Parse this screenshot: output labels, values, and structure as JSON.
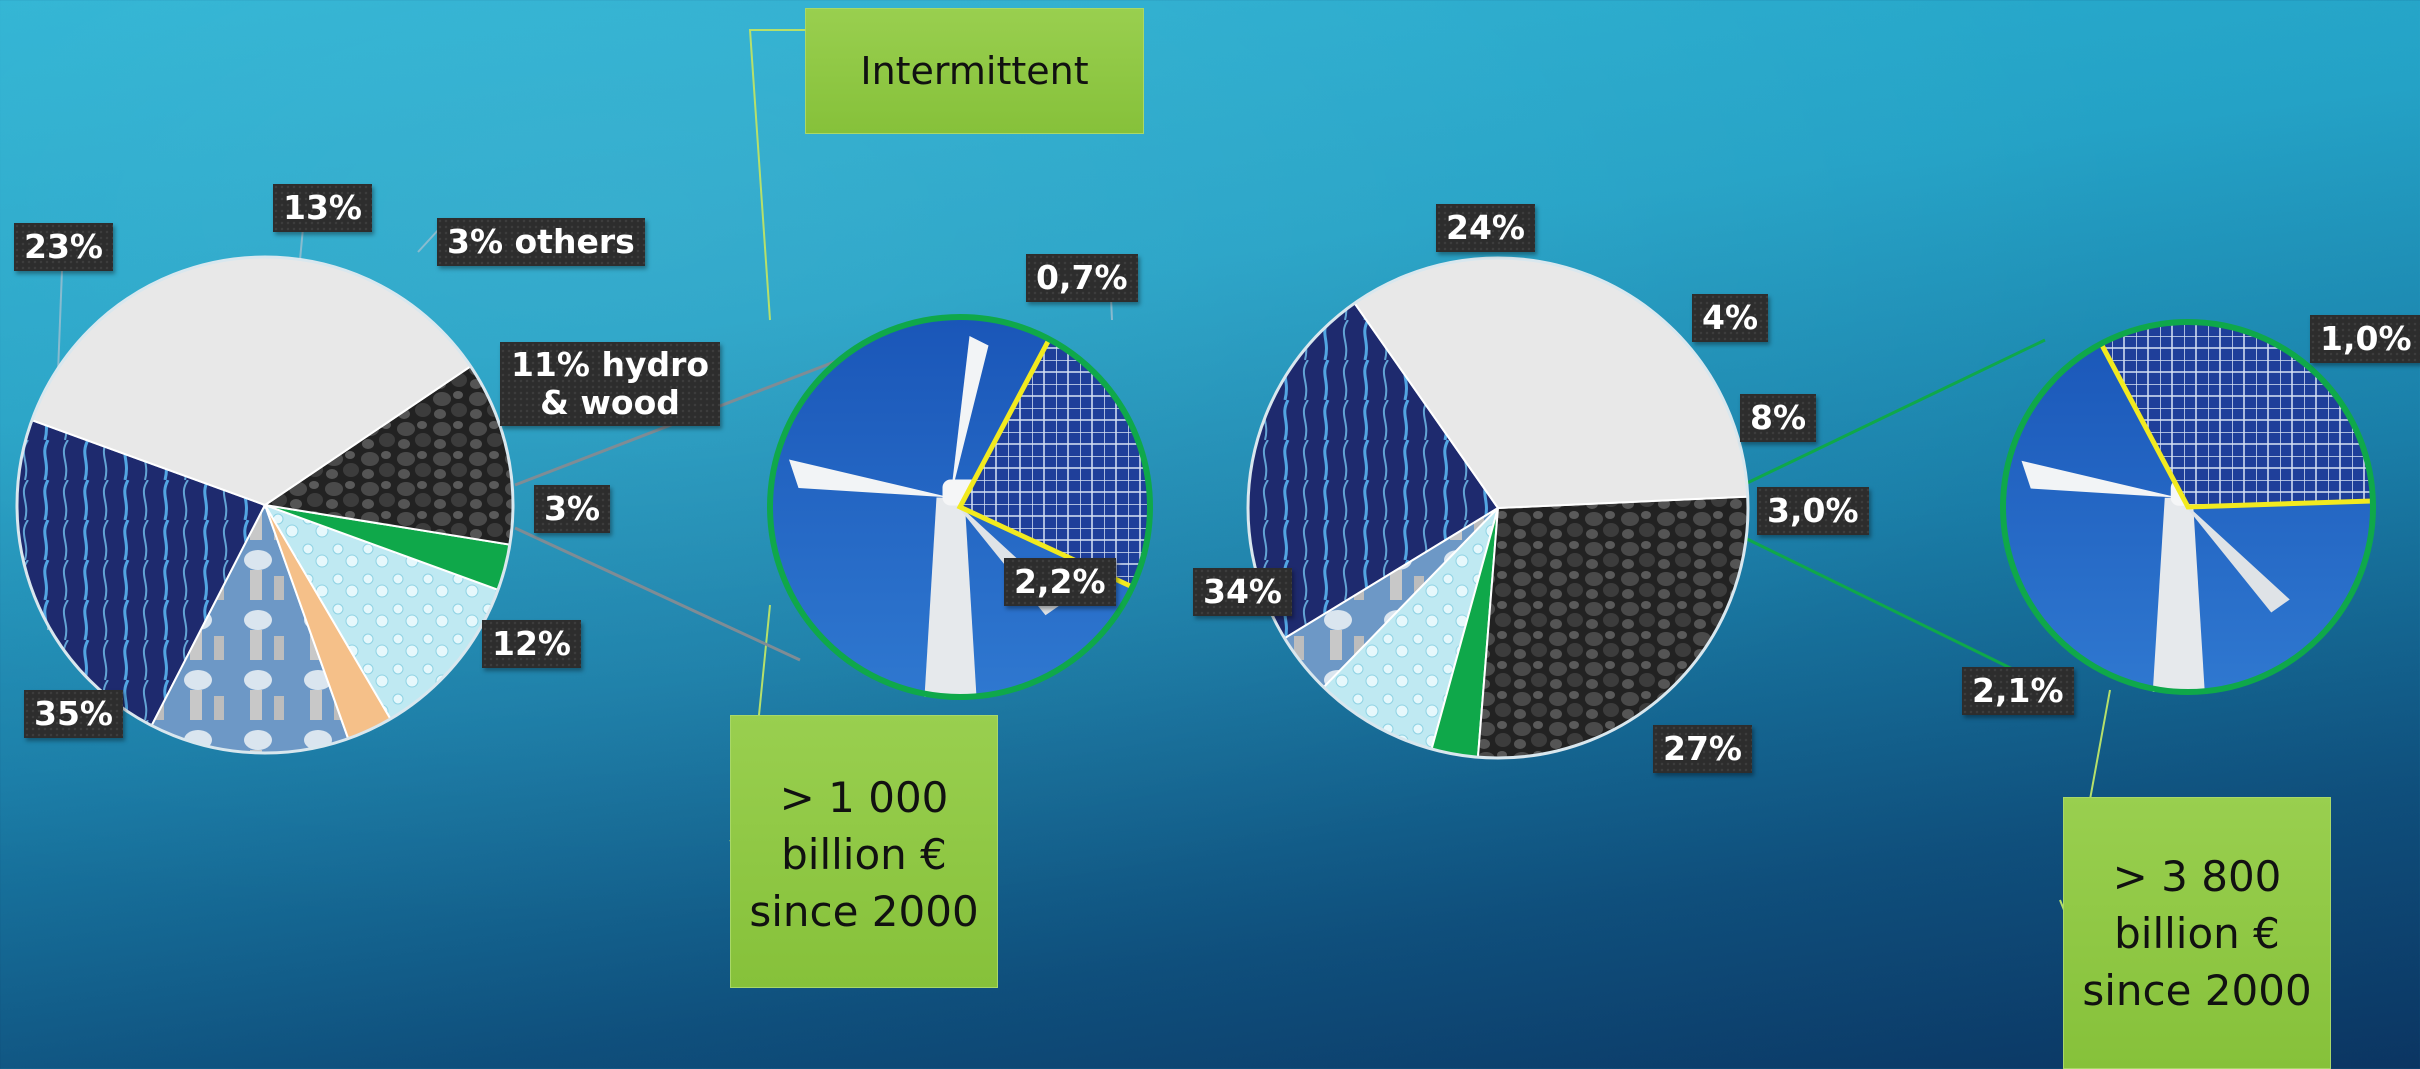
{
  "colors": {
    "gas": "#2a3f8f",
    "nuclear": "#8fb4d8",
    "others": "#f5c089",
    "hydro_wood": "#bfe9f2",
    "renewables_intermittent": "#0fa84a",
    "coal": "#2b2b2b",
    "oil": "#e8e8e8",
    "zoom_border": "#0fa84a",
    "solar_border": "#f2ea1f",
    "callout_bg": "#8dc63f"
  },
  "chart_data": [
    {
      "type": "pie",
      "slices": [
        {
          "label": "23%",
          "value": 23,
          "icon": "gas-flame-icon"
        },
        {
          "label": "13%",
          "value": 13,
          "icon": "nuclear-plant-icon"
        },
        {
          "label": "3% others",
          "value": 3,
          "icon": ""
        },
        {
          "label": "11% hydro & wood",
          "value": 11,
          "icon": "water-drops-icon"
        },
        {
          "label": "3%",
          "value": 3,
          "icon": ""
        },
        {
          "label": "12%",
          "value": 12,
          "icon": "coal-icon"
        },
        {
          "label": "35%",
          "value": 35,
          "icon": "oil-barrel-icon"
        }
      ],
      "zoom": {
        "slices": [
          {
            "label": "0,7%",
            "value": 0.7,
            "icon": "solar-panel-icon"
          },
          {
            "label": "2,2%",
            "value": 2.2,
            "icon": "wind-turbine-icon"
          }
        ]
      }
    },
    {
      "type": "pie",
      "slices": [
        {
          "label": "24%",
          "value": 24,
          "icon": "gas-flame-icon"
        },
        {
          "label": "4%",
          "value": 4,
          "icon": "nuclear-plant-icon"
        },
        {
          "label": "8%",
          "value": 8,
          "icon": "water-drops-icon"
        },
        {
          "label": "3,0%",
          "value": 3.0,
          "icon": ""
        },
        {
          "label": "27%",
          "value": 27,
          "icon": "coal-icon"
        },
        {
          "label": "34%",
          "value": 34,
          "icon": "oil-barrel-icon"
        }
      ],
      "zoom": {
        "slices": [
          {
            "label": "1,0%",
            "value": 1.0,
            "icon": "solar-panel-icon"
          },
          {
            "label": "2,1%",
            "value": 2.1,
            "icon": "wind-turbine-icon"
          }
        ]
      }
    }
  ],
  "callouts": {
    "intermittent": "Intermittent",
    "left_total": [
      "> 1 000",
      "billion €",
      "since 2000"
    ],
    "right_total": [
      "> 3 800",
      "billion €",
      "since 2000"
    ]
  }
}
